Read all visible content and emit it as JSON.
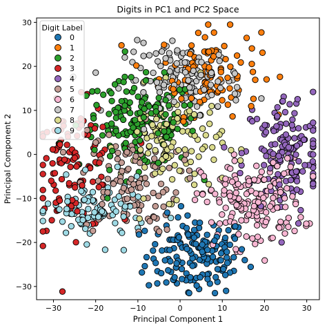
{
  "chart_data": {
    "type": "scatter",
    "title": "Digits in PC1 and PC2 Space",
    "xlabel": "Principal Component 1",
    "ylabel": "Principal Component 2",
    "xlim": [
      -34,
      33
    ],
    "ylim": [
      -33,
      31
    ],
    "xticks": [
      -30,
      -20,
      -10,
      0,
      10,
      20,
      30
    ],
    "yticks": [
      -30,
      -20,
      -10,
      0,
      10,
      20,
      30
    ],
    "grid": false,
    "legend_title": "Digit Label",
    "legend_position": "top-left",
    "series": [
      {
        "name": "0",
        "color": "#1f77b4",
        "center": [
          4,
          -23
        ],
        "spread": [
          6,
          4.5
        ],
        "count": 160
      },
      {
        "name": "1",
        "color": "#ff7f0e",
        "center": [
          7,
          19
        ],
        "spread": [
          6,
          5
        ],
        "count": 100
      },
      {
        "name": "2",
        "color": "#2ca02c",
        "center": [
          -10,
          7
        ],
        "spread": [
          7,
          5
        ],
        "count": 170
      },
      {
        "name": "3",
        "color": "#d62728",
        "center": [
          -25,
          -3
        ],
        "spread": [
          5,
          7
        ],
        "count": 120
      },
      {
        "name": "4",
        "color": "#9467bd",
        "center": [
          25,
          0
        ],
        "spread": [
          5,
          7
        ],
        "count": 150
      },
      {
        "name": "5",
        "color": "#c49c94",
        "center": [
          -12,
          -6
        ],
        "spread": [
          6,
          6
        ],
        "count": 110
      },
      {
        "name": "6",
        "color": "#f7b6d2",
        "center": [
          17,
          -11
        ],
        "spread": [
          6,
          5
        ],
        "count": 170
      },
      {
        "name": "7",
        "color": "#c7c7c7",
        "center": [
          1,
          17
        ],
        "spread": [
          7,
          4
        ],
        "count": 140
      },
      {
        "name": "8",
        "color": "#dbdb8d",
        "center": [
          -2,
          3
        ],
        "spread": [
          6,
          6
        ],
        "count": 120
      },
      {
        "name": "9",
        "color": "#9edae5",
        "center": [
          -20,
          -13
        ],
        "spread": [
          6,
          3.5
        ],
        "count": 90
      }
    ]
  }
}
